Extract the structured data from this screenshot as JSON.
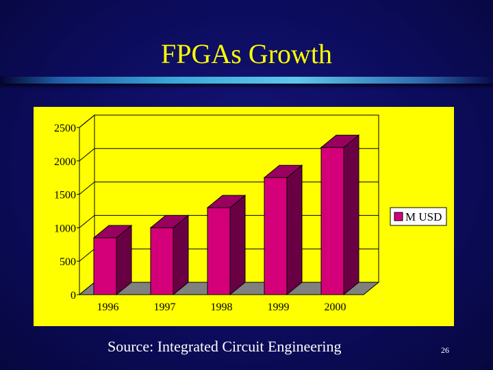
{
  "slide": {
    "title": "FPGAs Growth",
    "source": "Source: Integrated Circuit Engineering",
    "page_number": "26"
  },
  "colors": {
    "background": "#0c0c5e",
    "title": "#ffff00",
    "panel": "#ffff00",
    "bar_front": "#d4007a",
    "bar_top": "#9a0060",
    "bar_side": "#6a0044",
    "floor": "#808080"
  },
  "chart_data": {
    "type": "bar",
    "categories": [
      "1996",
      "1997",
      "1998",
      "1999",
      "2000"
    ],
    "series": [
      {
        "name": "M USD",
        "values": [
          850,
          1000,
          1300,
          1750,
          2200
        ]
      }
    ],
    "ylim": [
      0,
      2500
    ],
    "yticks": [
      "0",
      "500",
      "1000",
      "1500",
      "2000",
      "2500"
    ],
    "grid": true,
    "legend_position": "right",
    "style": "3d-column"
  }
}
